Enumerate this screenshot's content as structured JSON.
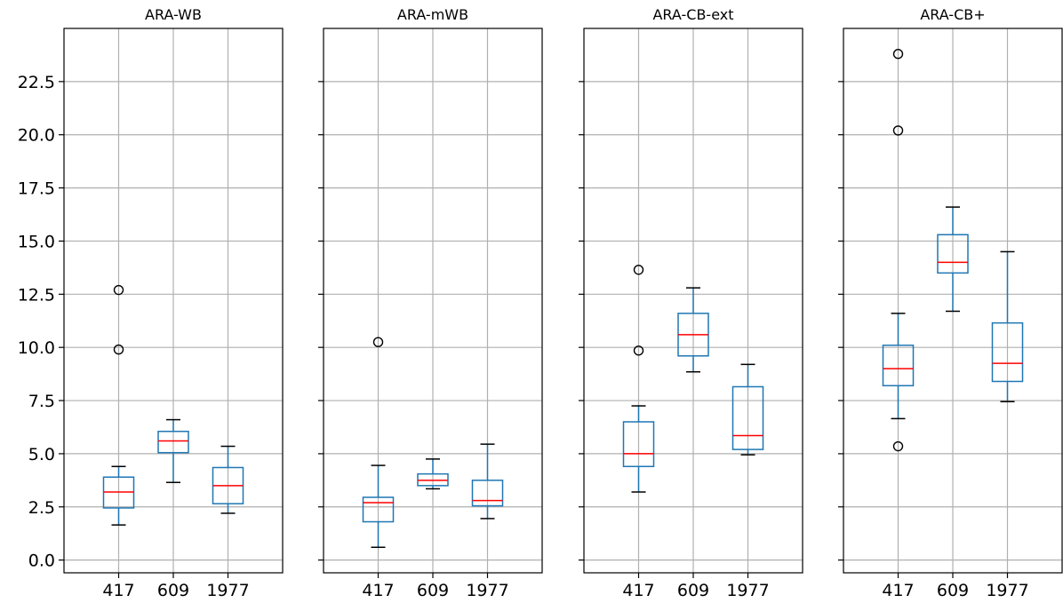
{
  "chart_data": {
    "type": "boxplot",
    "categories": [
      "417",
      "609",
      "1977"
    ],
    "ylim": [
      -0.6,
      25.0
    ],
    "yticks": [
      "0.0",
      "2.5",
      "5.0",
      "7.5",
      "10.0",
      "12.5",
      "15.0",
      "17.5",
      "20.0",
      "22.5"
    ],
    "ytick_values": [
      0.0,
      2.5,
      5.0,
      7.5,
      10.0,
      12.5,
      15.0,
      17.5,
      20.0,
      22.5
    ],
    "grid": true,
    "colors": {
      "box": "#1f77b4",
      "median": "#ff0000",
      "grid": "#b0b0b0",
      "flier": "#000000"
    },
    "panels": [
      {
        "title": "ARA-WB",
        "boxes": [
          {
            "category": "417",
            "whisker_low": 1.65,
            "q1": 2.45,
            "median": 3.2,
            "q3": 3.9,
            "whisker_high": 4.4,
            "outliers": [
              9.9,
              12.7
            ]
          },
          {
            "category": "609",
            "whisker_low": 3.65,
            "q1": 5.05,
            "median": 5.6,
            "q3": 6.05,
            "whisker_high": 6.6,
            "outliers": []
          },
          {
            "category": "1977",
            "whisker_low": 2.2,
            "q1": 2.65,
            "median": 3.5,
            "q3": 4.35,
            "whisker_high": 5.35,
            "outliers": []
          }
        ]
      },
      {
        "title": "ARA-mWB",
        "boxes": [
          {
            "category": "417",
            "whisker_low": 0.6,
            "q1": 1.8,
            "median": 2.7,
            "q3": 2.95,
            "whisker_high": 4.45,
            "outliers": [
              10.25
            ]
          },
          {
            "category": "609",
            "whisker_low": 3.35,
            "q1": 3.5,
            "median": 3.75,
            "q3": 4.05,
            "whisker_high": 4.75,
            "outliers": []
          },
          {
            "category": "1977",
            "whisker_low": 1.95,
            "q1": 2.55,
            "median": 2.8,
            "q3": 3.75,
            "whisker_high": 5.45,
            "outliers": []
          }
        ]
      },
      {
        "title": "ARA-CB-ext",
        "boxes": [
          {
            "category": "417",
            "whisker_low": 3.2,
            "q1": 4.4,
            "median": 5.0,
            "q3": 6.5,
            "whisker_high": 7.25,
            "outliers": [
              9.85,
              13.65
            ]
          },
          {
            "category": "609",
            "whisker_low": 8.85,
            "q1": 9.6,
            "median": 10.6,
            "q3": 11.6,
            "whisker_high": 12.8,
            "outliers": []
          },
          {
            "category": "1977",
            "whisker_low": 4.95,
            "q1": 5.2,
            "median": 5.85,
            "q3": 8.15,
            "whisker_high": 9.2,
            "outliers": []
          }
        ]
      },
      {
        "title": "ARA-CB+",
        "boxes": [
          {
            "category": "417",
            "whisker_low": 6.65,
            "q1": 8.2,
            "median": 9.0,
            "q3": 10.1,
            "whisker_high": 11.6,
            "outliers": [
              5.35,
              20.2,
              23.8
            ]
          },
          {
            "category": "609",
            "whisker_low": 11.7,
            "q1": 13.5,
            "median": 14.0,
            "q3": 15.3,
            "whisker_high": 16.6,
            "outliers": []
          },
          {
            "category": "1977",
            "whisker_low": 7.45,
            "q1": 8.4,
            "median": 9.25,
            "q3": 11.15,
            "whisker_high": 14.5,
            "outliers": []
          }
        ]
      }
    ]
  }
}
